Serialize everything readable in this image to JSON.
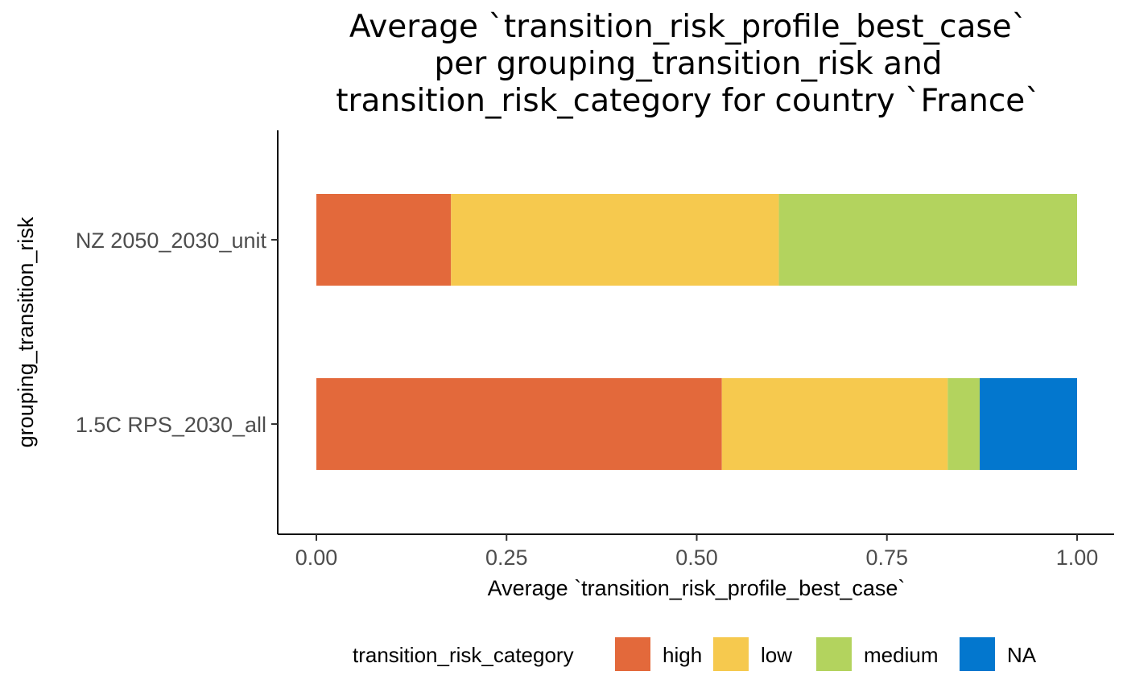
{
  "chart_data": {
    "type": "bar",
    "orientation": "horizontal",
    "stacked": true,
    "title_lines": [
      "Average `transition_risk_profile_best_case`",
      "per grouping_transition_risk and",
      "transition_risk_category for country `France`"
    ],
    "xlabel": "Average `transition_risk_profile_best_case`",
    "ylabel": "grouping_transition_risk",
    "xlim": [
      0,
      1
    ],
    "x_ticks": [
      "0.00",
      "0.25",
      "0.50",
      "0.75",
      "1.00"
    ],
    "categories": [
      "NZ 2050_2030_unit",
      "1.5C RPS_2030_all"
    ],
    "series": [
      {
        "name": "high",
        "color": "#E3693B",
        "values": [
          0.177,
          0.533
        ]
      },
      {
        "name": "low",
        "color": "#F6C94E",
        "values": [
          0.431,
          0.297
        ]
      },
      {
        "name": "medium",
        "color": "#B3D35E",
        "values": [
          0.392,
          0.042
        ]
      },
      {
        "name": "NA",
        "color": "#0377CE",
        "values": [
          0,
          0.128
        ]
      }
    ],
    "legend": {
      "title": "transition_risk_category",
      "position": "bottom"
    },
    "grid": false
  }
}
